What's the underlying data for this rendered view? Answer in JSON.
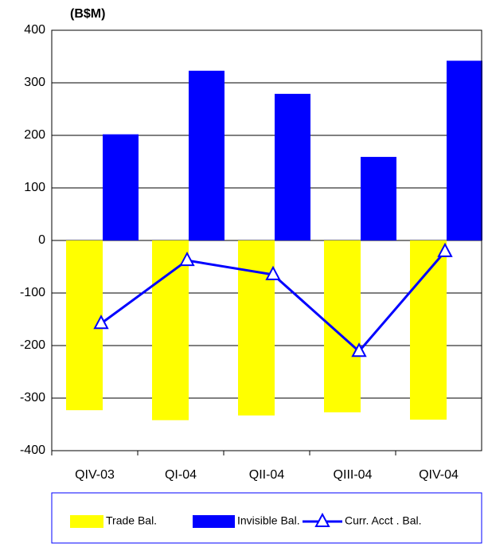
{
  "chart_data": {
    "type": "bar",
    "y_axis_label": "(B$M)",
    "categories": [
      "QIV-03",
      "QI-04",
      "QII-04",
      "QIII-04",
      "QIV-04"
    ],
    "series": [
      {
        "name": "Trade Bal.",
        "color": "#ffff00",
        "type": "bar",
        "values": [
          -323,
          -342,
          -333,
          -327,
          -341
        ]
      },
      {
        "name": "Invisible Bal.",
        "color": "#0000ff",
        "type": "bar",
        "values": [
          202,
          323,
          279,
          159,
          342
        ]
      },
      {
        "name": "Curr. Acct . Bal.",
        "color": "#0000ff",
        "type": "line",
        "values": [
          -158,
          -38,
          -65,
          -211,
          -21
        ]
      }
    ],
    "ylim": [
      -400,
      400
    ],
    "yticks": [
      -400,
      -300,
      -200,
      -100,
      0,
      100,
      200,
      300,
      400
    ],
    "grid": true
  }
}
